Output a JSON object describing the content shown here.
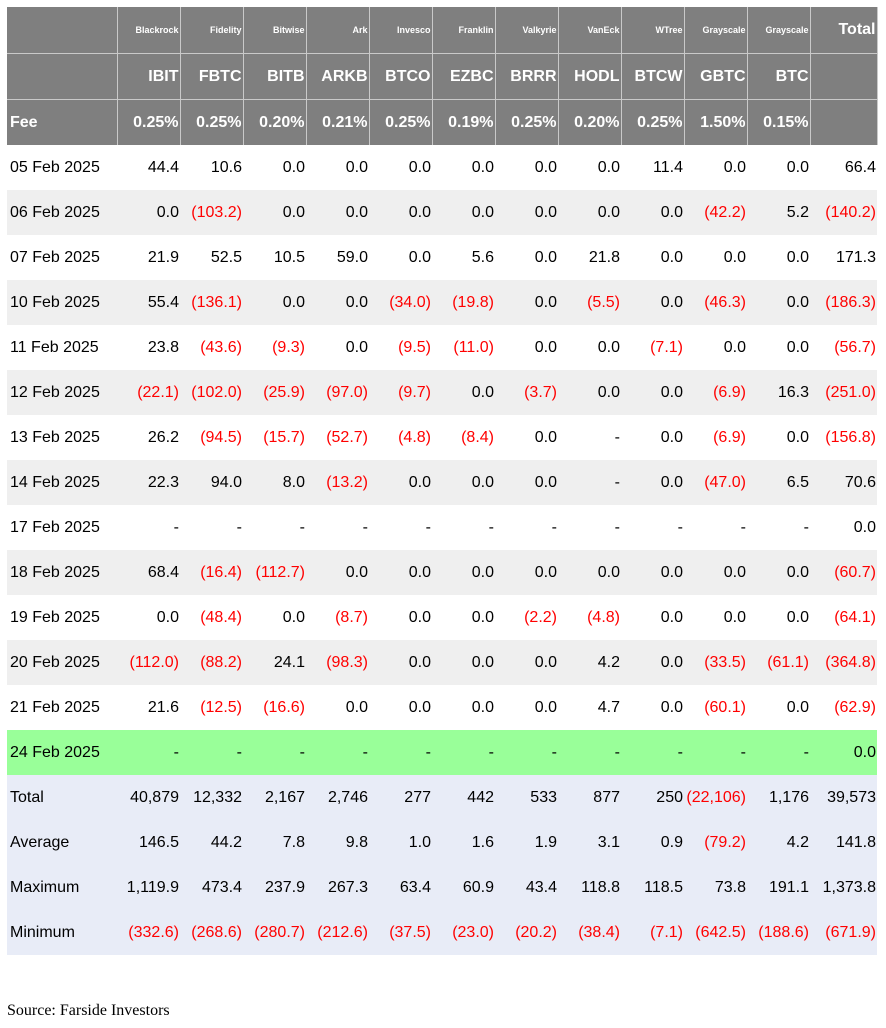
{
  "providers": [
    "Blackrock",
    "Fidelity",
    "Bitwise",
    "Ark",
    "Invesco",
    "Franklin",
    "Valkyrie",
    "VanEck",
    "WTree",
    "Grayscale",
    "Grayscale"
  ],
  "total_header": "Total",
  "tickers": [
    "IBIT",
    "FBTC",
    "BITB",
    "ARKB",
    "BTCO",
    "EZBC",
    "BRRR",
    "HODL",
    "BTCW",
    "GBTC",
    "BTC"
  ],
  "fee_label": "Fee",
  "fees": [
    "0.25%",
    "0.25%",
    "0.20%",
    "0.21%",
    "0.25%",
    "0.19%",
    "0.25%",
    "0.20%",
    "0.25%",
    "1.50%",
    "0.15%"
  ],
  "rows": [
    {
      "date": "05 Feb 2025",
      "values": [
        "44.4",
        "10.6",
        "0.0",
        "0.0",
        "0.0",
        "0.0",
        "0.0",
        "0.0",
        "11.4",
        "0.0",
        "0.0"
      ],
      "total": "66.4"
    },
    {
      "date": "06 Feb 2025",
      "values": [
        "0.0",
        "(103.2)",
        "0.0",
        "0.0",
        "0.0",
        "0.0",
        "0.0",
        "0.0",
        "0.0",
        "(42.2)",
        "5.2"
      ],
      "total": "(140.2)"
    },
    {
      "date": "07 Feb 2025",
      "values": [
        "21.9",
        "52.5",
        "10.5",
        "59.0",
        "0.0",
        "5.6",
        "0.0",
        "21.8",
        "0.0",
        "0.0",
        "0.0"
      ],
      "total": "171.3"
    },
    {
      "date": "10 Feb 2025",
      "values": [
        "55.4",
        "(136.1)",
        "0.0",
        "0.0",
        "(34.0)",
        "(19.8)",
        "0.0",
        "(5.5)",
        "0.0",
        "(46.3)",
        "0.0"
      ],
      "total": "(186.3)"
    },
    {
      "date": "11 Feb 2025",
      "values": [
        "23.8",
        "(43.6)",
        "(9.3)",
        "0.0",
        "(9.5)",
        "(11.0)",
        "0.0",
        "0.0",
        "(7.1)",
        "0.0",
        "0.0"
      ],
      "total": "(56.7)"
    },
    {
      "date": "12 Feb 2025",
      "values": [
        "(22.1)",
        "(102.0)",
        "(25.9)",
        "(97.0)",
        "(9.7)",
        "0.0",
        "(3.7)",
        "0.0",
        "0.0",
        "(6.9)",
        "16.3"
      ],
      "total": "(251.0)"
    },
    {
      "date": "13 Feb 2025",
      "values": [
        "26.2",
        "(94.5)",
        "(15.7)",
        "(52.7)",
        "(4.8)",
        "(8.4)",
        "0.0",
        "-",
        "0.0",
        "(6.9)",
        "0.0"
      ],
      "total": "(156.8)"
    },
    {
      "date": "14 Feb 2025",
      "values": [
        "22.3",
        "94.0",
        "8.0",
        "(13.2)",
        "0.0",
        "0.0",
        "0.0",
        "-",
        "0.0",
        "(47.0)",
        "6.5"
      ],
      "total": "70.6"
    },
    {
      "date": "17 Feb 2025",
      "values": [
        "-",
        "-",
        "-",
        "-",
        "-",
        "-",
        "-",
        "-",
        "-",
        "-",
        "-"
      ],
      "total": "0.0"
    },
    {
      "date": "18 Feb 2025",
      "values": [
        "68.4",
        "(16.4)",
        "(112.7)",
        "0.0",
        "0.0",
        "0.0",
        "0.0",
        "0.0",
        "0.0",
        "0.0",
        "0.0"
      ],
      "total": "(60.7)"
    },
    {
      "date": "19 Feb 2025",
      "values": [
        "0.0",
        "(48.4)",
        "0.0",
        "(8.7)",
        "0.0",
        "0.0",
        "(2.2)",
        "(4.8)",
        "0.0",
        "0.0",
        "0.0"
      ],
      "total": "(64.1)"
    },
    {
      "date": "20 Feb 2025",
      "values": [
        "(112.0)",
        "(88.2)",
        "24.1",
        "(98.3)",
        "0.0",
        "0.0",
        "0.0",
        "4.2",
        "0.0",
        "(33.5)",
        "(61.1)"
      ],
      "total": "(364.8)"
    },
    {
      "date": "21 Feb 2025",
      "values": [
        "21.6",
        "(12.5)",
        "(16.6)",
        "0.0",
        "0.0",
        "0.0",
        "0.0",
        "4.7",
        "0.0",
        "(60.1)",
        "0.0"
      ],
      "total": "(62.9)"
    },
    {
      "date": "24 Feb 2025",
      "values": [
        "-",
        "-",
        "-",
        "-",
        "-",
        "-",
        "-",
        "-",
        "-",
        "-",
        "-"
      ],
      "total": "0.0",
      "highlight": true
    }
  ],
  "stats": [
    {
      "label": "Total",
      "values": [
        "40,879",
        "12,332",
        "2,167",
        "2,746",
        "277",
        "442",
        "533",
        "877",
        "250",
        "(22,106)",
        "1,176"
      ],
      "total": "39,573"
    },
    {
      "label": "Average",
      "values": [
        "146.5",
        "44.2",
        "7.8",
        "9.8",
        "1.0",
        "1.6",
        "1.9",
        "3.1",
        "0.9",
        "(79.2)",
        "4.2"
      ],
      "total": "141.8"
    },
    {
      "label": "Maximum",
      "values": [
        "1,119.9",
        "473.4",
        "237.9",
        "267.3",
        "63.4",
        "60.9",
        "43.4",
        "118.8",
        "118.5",
        "73.8",
        "191.1"
      ],
      "total": "1,373.8"
    },
    {
      "label": "Minimum",
      "values": [
        "(332.6)",
        "(268.6)",
        "(280.7)",
        "(212.6)",
        "(37.5)",
        "(23.0)",
        "(20.2)",
        "(38.4)",
        "(7.1)",
        "(642.5)",
        "(188.6)"
      ],
      "total": "(671.9)"
    }
  ],
  "source": "Source: Farside Investors",
  "colors": {
    "header_bg": "#7f7f7f",
    "negative": "#ff0000",
    "highlight_row": "#99ff99",
    "stats_bg": "#e8ecf7",
    "alt_row": "#efefef"
  }
}
